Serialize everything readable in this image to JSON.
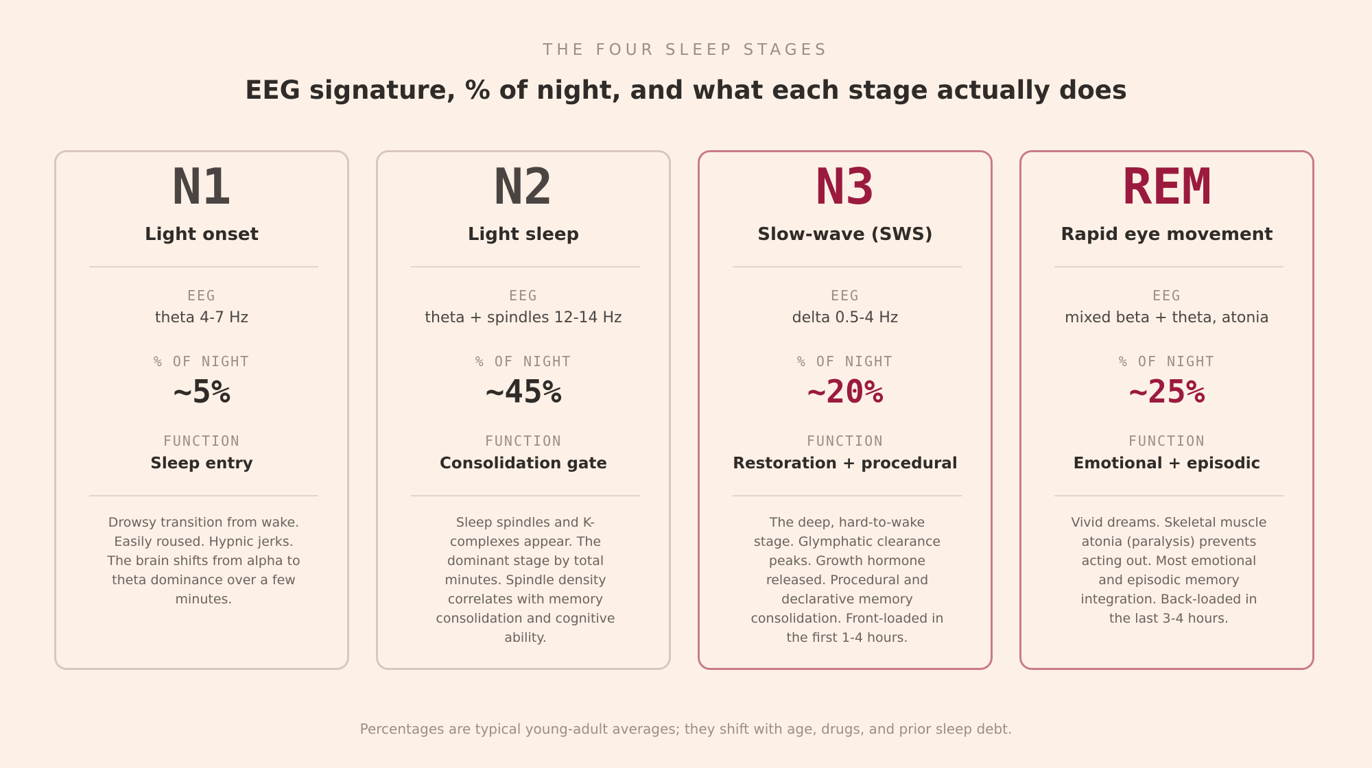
{
  "header": {
    "eyebrow": "THE FOUR SLEEP STAGES",
    "title": "EEG signature, % of night, and what each stage actually does"
  },
  "labels": {
    "eeg": "EEG",
    "percent": "% OF NIGHT",
    "function": "FUNCTION"
  },
  "stages": [
    {
      "code": "N1",
      "name": "Light onset",
      "eeg": "theta 4-7 Hz",
      "percent": "~5%",
      "function": "Sleep entry",
      "description": "Drowsy transition from wake. Easily roused. Hypnic jerks. The brain shifts from alpha to theta dominance over a few minutes."
    },
    {
      "code": "N2",
      "name": "Light sleep",
      "eeg": "theta + spindles 12-14 Hz",
      "percent": "~45%",
      "function": "Consolidation gate",
      "description": "Sleep spindles and K-complexes appear. The dominant stage by total minutes. Spindle density correlates with memory consolidation and cognitive ability."
    },
    {
      "code": "N3",
      "name": "Slow-wave (SWS)",
      "eeg": "delta 0.5-4 Hz",
      "percent": "~20%",
      "function": "Restoration + procedural",
      "description": "The deep, hard-to-wake stage. Glymphatic clearance peaks. Growth hormone released. Procedural and declarative memory consolidation. Front-loaded in the first 1-4 hours."
    },
    {
      "code": "REM",
      "name": "Rapid eye movement",
      "eeg": "mixed beta + theta, atonia",
      "percent": "~25%",
      "function": "Emotional + episodic",
      "description": "Vivid dreams. Skeletal muscle atonia (paralysis) prevents acting out. Most emotional and episodic memory integration. Back-loaded in the last 3-4 hours."
    }
  ],
  "footnote": "Percentages are typical young-adult averages; they shift with age, drugs, and prior sleep debt.",
  "colors": {
    "background": "#fdf1e7",
    "accent": "#9b1a3e",
    "accent_border": "#c97b86",
    "neutral_border": "#d8c7bc"
  }
}
